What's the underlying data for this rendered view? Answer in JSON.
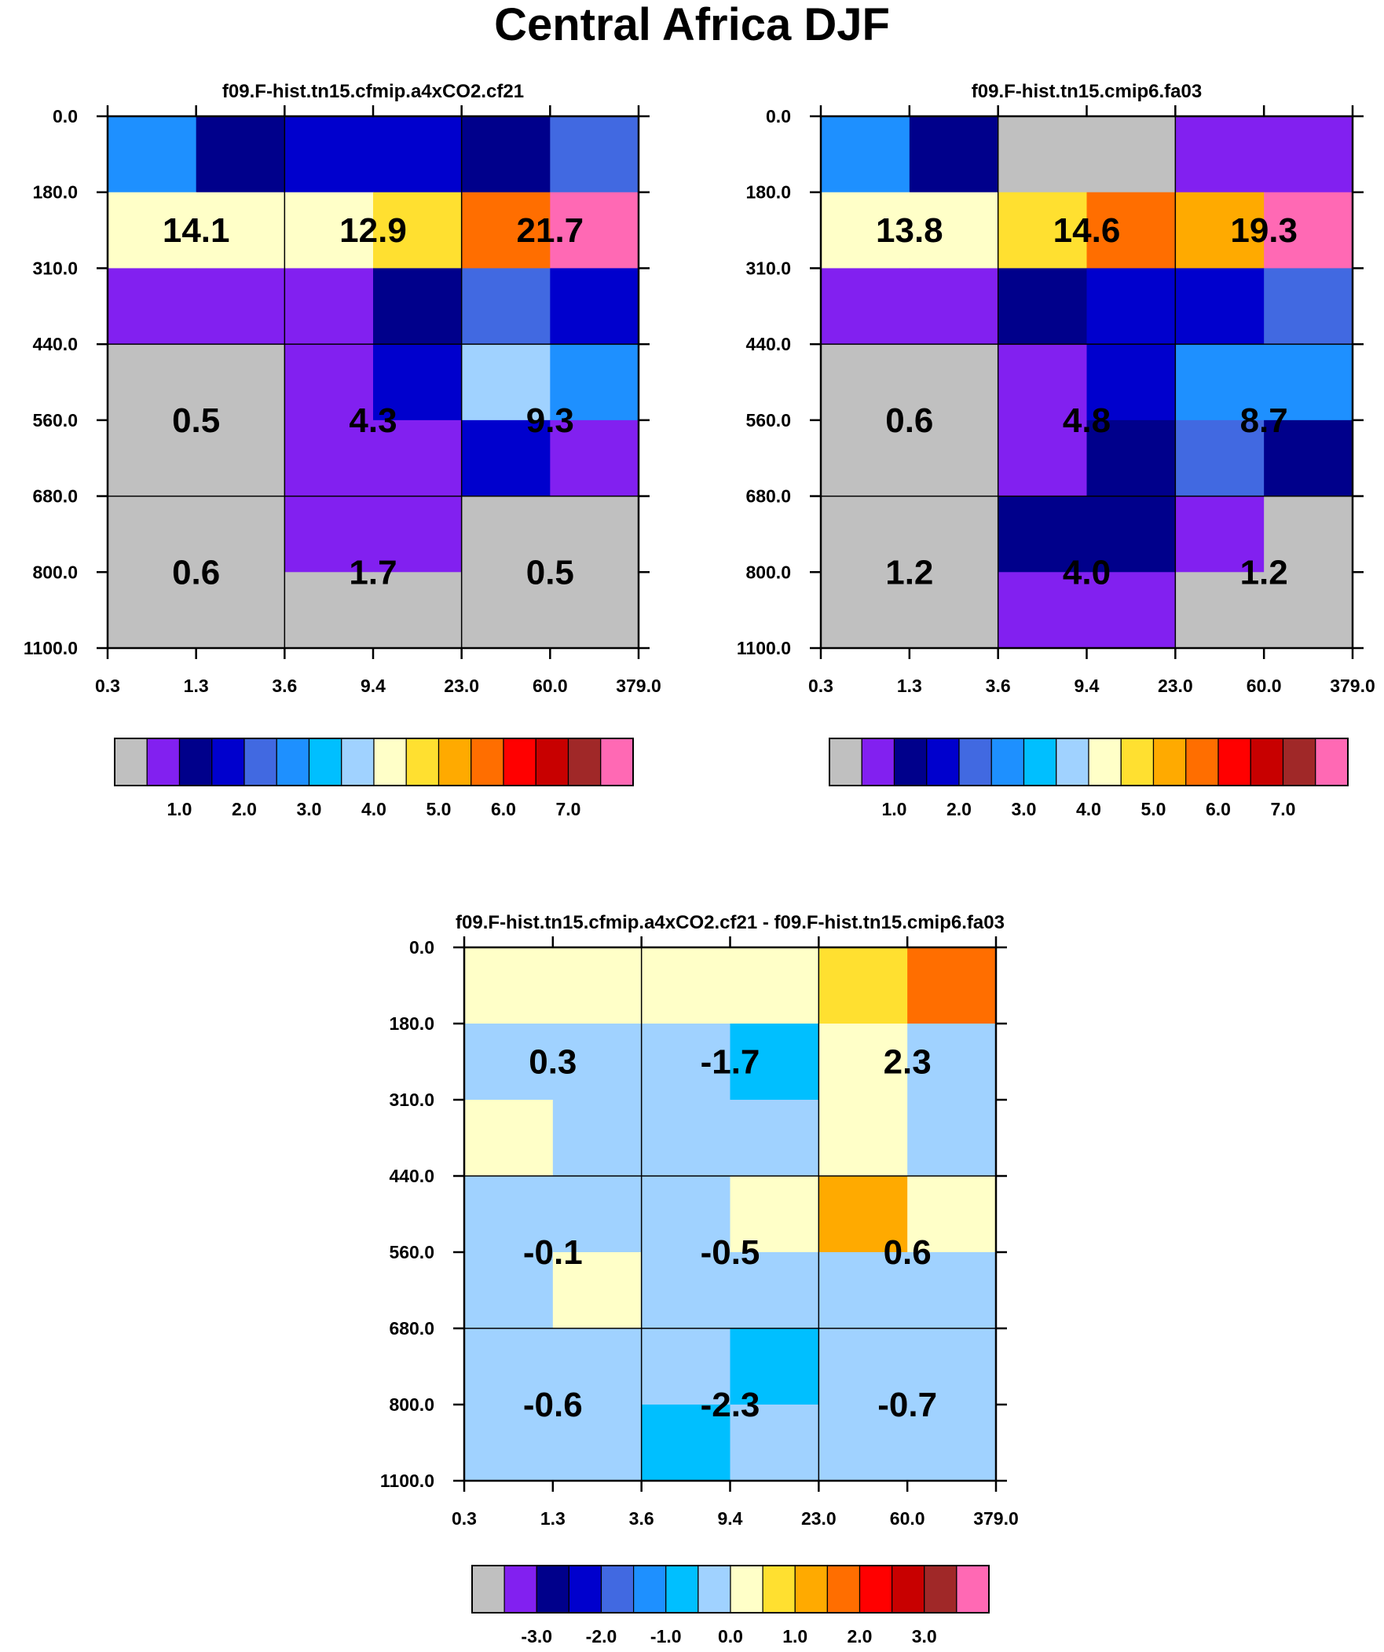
{
  "title": "Central Africa DJF",
  "colors": {
    "levels": [
      "#C0C0C0",
      "#8220F0",
      "#00008B",
      "#0000CD",
      "#4169E1",
      "#1E90FF",
      "#00BFFF",
      "#A0D2FF",
      "#FFFFC8",
      "#FFE030",
      "#FFAA00",
      "#FF6E00",
      "#FF0000",
      "#C80000",
      "#A02828",
      "#FF69B4"
    ]
  },
  "chart_data": [
    {
      "type": "heatmap",
      "id": "panel-1",
      "title": "f09.F-hist.tn15.cfmip.a4xCO2.cf21",
      "x_ticks": [
        "0.3",
        "1.3",
        "3.6",
        "9.4",
        "23.0",
        "60.0",
        "379.0"
      ],
      "y_ticks": [
        "0.0",
        "180.0",
        "310.0",
        "440.0",
        "560.0",
        "680.0",
        "800.0",
        "1100.0"
      ],
      "cells": [
        [
          5,
          2,
          3,
          3,
          2,
          4
        ],
        [
          8,
          8,
          8,
          9,
          11,
          15
        ],
        [
          1,
          1,
          1,
          2,
          4,
          3
        ],
        [
          0,
          0,
          1,
          3,
          7,
          5
        ],
        [
          0,
          0,
          1,
          1,
          3,
          1
        ],
        [
          0,
          0,
          1,
          1,
          0,
          0
        ],
        [
          0,
          0,
          0,
          0,
          0,
          0
        ]
      ],
      "bins": [
        0.25,
        1.0,
        3.0
      ],
      "block_values": [
        [
          "14.1",
          "12.9",
          "21.7"
        ],
        [
          "0.5",
          "4.3",
          "9.3"
        ],
        [
          "0.6",
          "1.7",
          "0.5"
        ]
      ],
      "colorbar_labels": [
        "1.0",
        "2.0",
        "3.0",
        "4.0",
        "5.0",
        "6.0",
        "7.0"
      ]
    },
    {
      "type": "heatmap",
      "id": "panel-2",
      "title": "f09.F-hist.tn15.cmip6.fa03",
      "x_ticks": [
        "0.3",
        "1.3",
        "3.6",
        "9.4",
        "23.0",
        "60.0",
        "379.0"
      ],
      "y_ticks": [
        "0.0",
        "180.0",
        "310.0",
        "440.0",
        "560.0",
        "680.0",
        "800.0",
        "1100.0"
      ],
      "cells": [
        [
          5,
          2,
          0,
          0,
          1,
          1
        ],
        [
          8,
          8,
          9,
          11,
          10,
          15
        ],
        [
          1,
          1,
          2,
          3,
          3,
          4
        ],
        [
          0,
          0,
          1,
          3,
          5,
          5
        ],
        [
          0,
          0,
          1,
          2,
          4,
          2
        ],
        [
          0,
          0,
          2,
          2,
          1,
          0
        ],
        [
          0,
          0,
          1,
          1,
          0,
          0
        ]
      ],
      "bins": [
        0.25,
        1.0,
        3.0
      ],
      "block_values": [
        [
          "13.8",
          "14.6",
          "19.3"
        ],
        [
          "0.6",
          "4.8",
          "8.7"
        ],
        [
          "1.2",
          "4.0",
          "1.2"
        ]
      ],
      "colorbar_labels": [
        "1.0",
        "2.0",
        "3.0",
        "4.0",
        "5.0",
        "6.0",
        "7.0"
      ]
    },
    {
      "type": "heatmap",
      "id": "panel-diff",
      "title": "f09.F-hist.tn15.cfmip.a4xCO2.cf21 - f09.F-hist.tn15.cmip6.fa03",
      "x_ticks": [
        "0.3",
        "1.3",
        "3.6",
        "9.4",
        "23.0",
        "60.0",
        "379.0"
      ],
      "y_ticks": [
        "0.0",
        "180.0",
        "310.0",
        "440.0",
        "560.0",
        "680.0",
        "800.0",
        "1100.0"
      ],
      "cells": [
        [
          8,
          8,
          8,
          8,
          9,
          11
        ],
        [
          7,
          7,
          7,
          6,
          8,
          7
        ],
        [
          8,
          7,
          7,
          7,
          8,
          7
        ],
        [
          7,
          7,
          7,
          8,
          10,
          8
        ],
        [
          7,
          8,
          7,
          7,
          7,
          7
        ],
        [
          7,
          7,
          7,
          6,
          7,
          7
        ],
        [
          7,
          7,
          6,
          7,
          7,
          7
        ]
      ],
      "bins": [
        0.25,
        1.0,
        3.0
      ],
      "block_values": [
        [
          "0.3",
          "-1.7",
          "2.3"
        ],
        [
          "-0.1",
          "-0.5",
          "0.6"
        ],
        [
          "-0.6",
          "-2.3",
          "-0.7"
        ]
      ],
      "colorbar_labels": [
        "-3.0",
        "-2.0",
        "-1.0",
        "0.0",
        "1.0",
        "2.0",
        "3.0"
      ]
    }
  ]
}
